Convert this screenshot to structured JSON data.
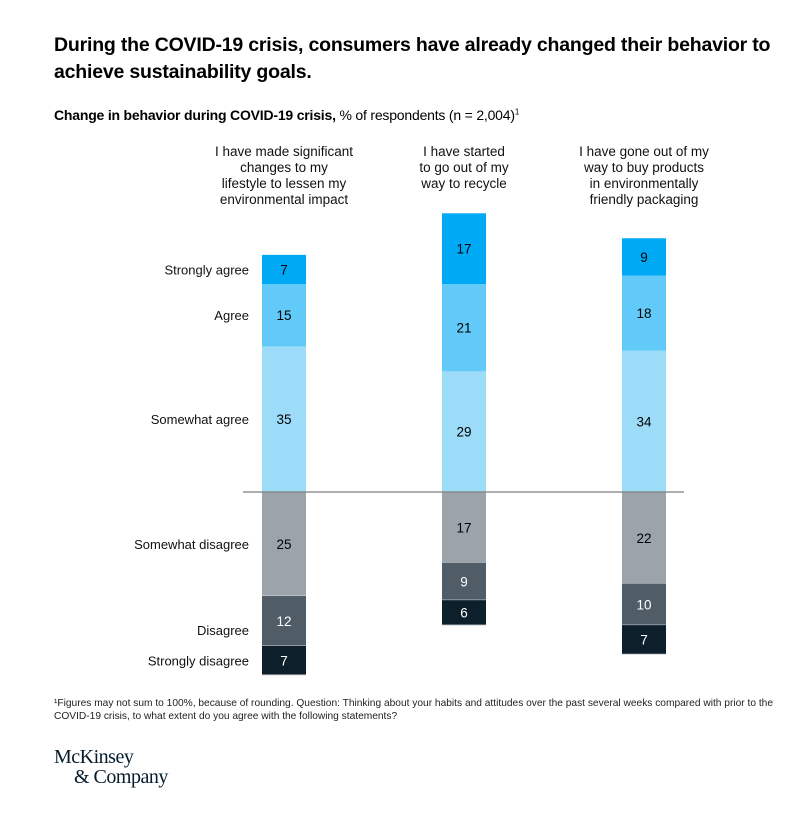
{
  "header": {
    "title": "During the COVID-19 crisis, consumers have already changed their behavior to achieve sustainability goals.",
    "subtitle_bold": "Change in behavior during COVID-19 crisis,",
    "subtitle_rest": " % of respondents (n = 2,004)",
    "subtitle_footnote_mark": "1"
  },
  "footnote": "¹Figures may not sum to 100%, because of rounding. Question: Thinking about your habits and attitudes over the past several weeks compared with prior to the COVID-19 crisis, to what extent do you agree with the following statements?",
  "brand": {
    "line1": "McKinsey",
    "line2": "& Company"
  },
  "colors": {
    "strongly_agree": "#00a9f4",
    "agree": "#61caf9",
    "somewhat_agree": "#9ddcf9",
    "somewhat_disagree": "#9ba3ab",
    "disagree": "#505c66",
    "strongly_disagree": "#0e1f2c",
    "baseline": "#7f7f7f"
  },
  "chart_data": {
    "type": "bar",
    "subtype": "diverging-stacked",
    "title": "Change in behavior during COVID-19 crisis",
    "ylabel": "% of respondents (n = 2,004)",
    "categories": [
      "I have made significant changes to my lifestyle to lessen my environmental impact",
      "I have started to go out of my way to recycle",
      "I have gone out of my way to buy products in environmentally friendly packaging"
    ],
    "category_lines": [
      [
        "I have made significant",
        "changes to my",
        "lifestyle to lessen my",
        "environmental impact"
      ],
      [
        "I have started",
        "to go out of my",
        "way to recycle"
      ],
      [
        "I have gone out of my",
        "way to buy products",
        "in environmentally",
        "friendly packaging"
      ]
    ],
    "series": [
      {
        "name": "Strongly agree",
        "side": "agree",
        "values": [
          7,
          17,
          9
        ]
      },
      {
        "name": "Agree",
        "side": "agree",
        "values": [
          15,
          21,
          18
        ]
      },
      {
        "name": "Somewhat agree",
        "side": "agree",
        "values": [
          35,
          29,
          34
        ]
      },
      {
        "name": "Somewhat disagree",
        "side": "disagree",
        "values": [
          25,
          17,
          22
        ]
      },
      {
        "name": "Disagree",
        "side": "disagree",
        "values": [
          12,
          9,
          10
        ]
      },
      {
        "name": "Strongly disagree",
        "side": "disagree",
        "values": [
          7,
          6,
          7
        ]
      }
    ],
    "legend_placement": "left",
    "grid": false
  }
}
